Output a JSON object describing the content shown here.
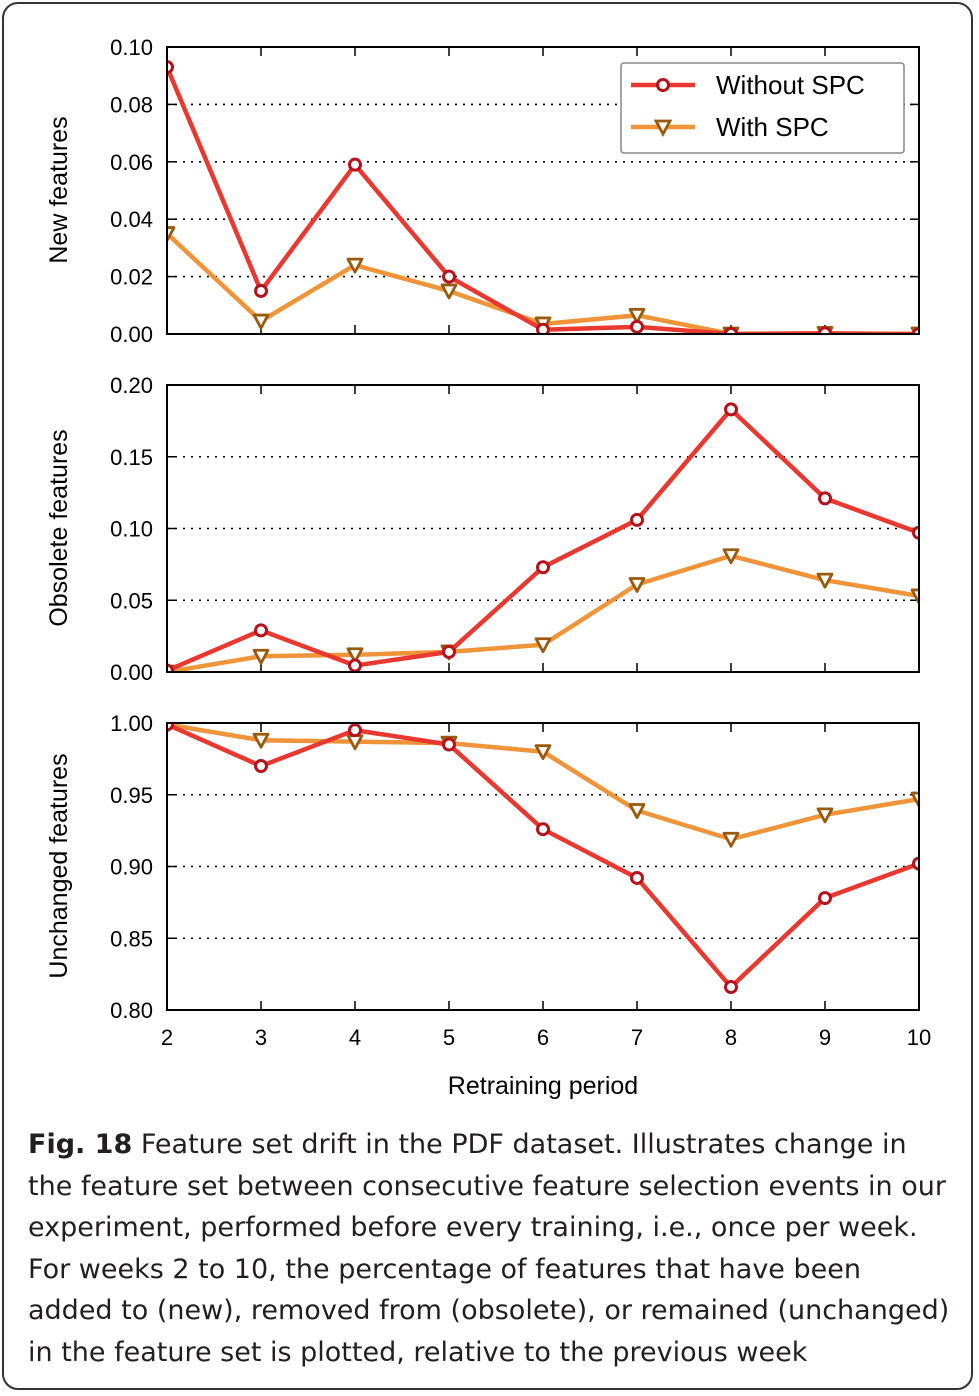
{
  "chart_data": [
    {
      "type": "line",
      "ylabel": "New features",
      "ylim": [
        0,
        0.1
      ],
      "yticks": [
        "0.00",
        "0.02",
        "0.04",
        "0.06",
        "0.08",
        "0.10"
      ],
      "x": [
        2,
        3,
        4,
        5,
        6,
        7,
        8,
        9,
        10
      ],
      "series": [
        {
          "name": "Without SPC",
          "color": "#e8382f",
          "marker": "circle",
          "values": [
            0.093,
            0.015,
            0.059,
            0.02,
            0.0015,
            0.0025,
            0.0,
            0.0002,
            0.0
          ]
        },
        {
          "name": "With SPC",
          "color": "#f0943a",
          "marker": "triangle-down",
          "values": [
            0.035,
            0.0045,
            0.024,
            0.015,
            0.0035,
            0.0065,
            0.0,
            0.0002,
            0.0
          ]
        }
      ],
      "legend": "top-right",
      "grid": "horizontal-dotted"
    },
    {
      "type": "line",
      "ylabel": "Obsolete features",
      "ylim": [
        0,
        0.2
      ],
      "yticks": [
        "0.00",
        "0.05",
        "0.10",
        "0.15",
        "0.20"
      ],
      "x": [
        2,
        3,
        4,
        5,
        6,
        7,
        8,
        9,
        10
      ],
      "series": [
        {
          "name": "Without SPC",
          "color": "#e8382f",
          "marker": "circle",
          "values": [
            0.001,
            0.029,
            0.0045,
            0.014,
            0.073,
            0.106,
            0.183,
            0.121,
            0.097
          ]
        },
        {
          "name": "With SPC",
          "color": "#f0943a",
          "marker": "triangle-down",
          "values": [
            0.0,
            0.011,
            0.012,
            0.014,
            0.019,
            0.061,
            0.081,
            0.064,
            0.053
          ]
        }
      ],
      "grid": "horizontal-dotted"
    },
    {
      "type": "line",
      "ylabel": "Unchanged features",
      "xlabel": "Retraining period",
      "ylim": [
        0.8,
        1.0
      ],
      "yticks": [
        "0.80",
        "0.85",
        "0.90",
        "0.95",
        "1.00"
      ],
      "x": [
        2,
        3,
        4,
        5,
        6,
        7,
        8,
        9,
        10
      ],
      "xticks": [
        "2",
        "3",
        "4",
        "5",
        "6",
        "7",
        "8",
        "9",
        "10"
      ],
      "series": [
        {
          "name": "Without SPC",
          "color": "#e8382f",
          "marker": "circle",
          "values": [
            0.999,
            0.97,
            0.995,
            0.985,
            0.926,
            0.892,
            0.816,
            0.878,
            0.902
          ]
        },
        {
          "name": "With SPC",
          "color": "#f0943a",
          "marker": "triangle-down",
          "values": [
            0.999,
            0.988,
            0.987,
            0.986,
            0.98,
            0.939,
            0.919,
            0.936,
            0.947
          ]
        }
      ],
      "grid": "horizontal-dotted"
    }
  ],
  "caption": {
    "label": "Fig. 18",
    "text": "Feature set drift in the PDF dataset. Illustrates change in the feature set between consecutive feature selection events in our experiment, performed before every training, i.e., once per week. For weeks 2 to 10, the percentage of features that have been added to (new), removed from (obsolete), or remained (unchanged) in the feature set is plotted, relative to the previous week"
  }
}
